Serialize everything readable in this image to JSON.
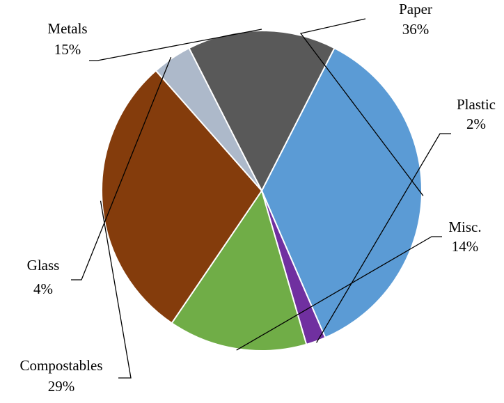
{
  "chart_data": {
    "type": "pie",
    "title": "",
    "slices": [
      {
        "label": "Paper",
        "value": 36,
        "value_label": "36%",
        "color": "#5B9BD5"
      },
      {
        "label": "Plastic",
        "value": 2,
        "value_label": "2%",
        "color": "#7030A0"
      },
      {
        "label": "Misc.",
        "value": 14,
        "value_label": "14%",
        "color": "#70AD47"
      },
      {
        "label": "Compostables",
        "value": 29,
        "value_label": "29%",
        "color": "#843C0C"
      },
      {
        "label": "Glass",
        "value": 4,
        "value_label": "4%",
        "color": "#ADB9CA"
      },
      {
        "label": "Metals",
        "value": 15,
        "value_label": "15%",
        "color": "#595959"
      }
    ],
    "start_angle_deg": -63,
    "direction": "clockwise",
    "legend": "none"
  }
}
